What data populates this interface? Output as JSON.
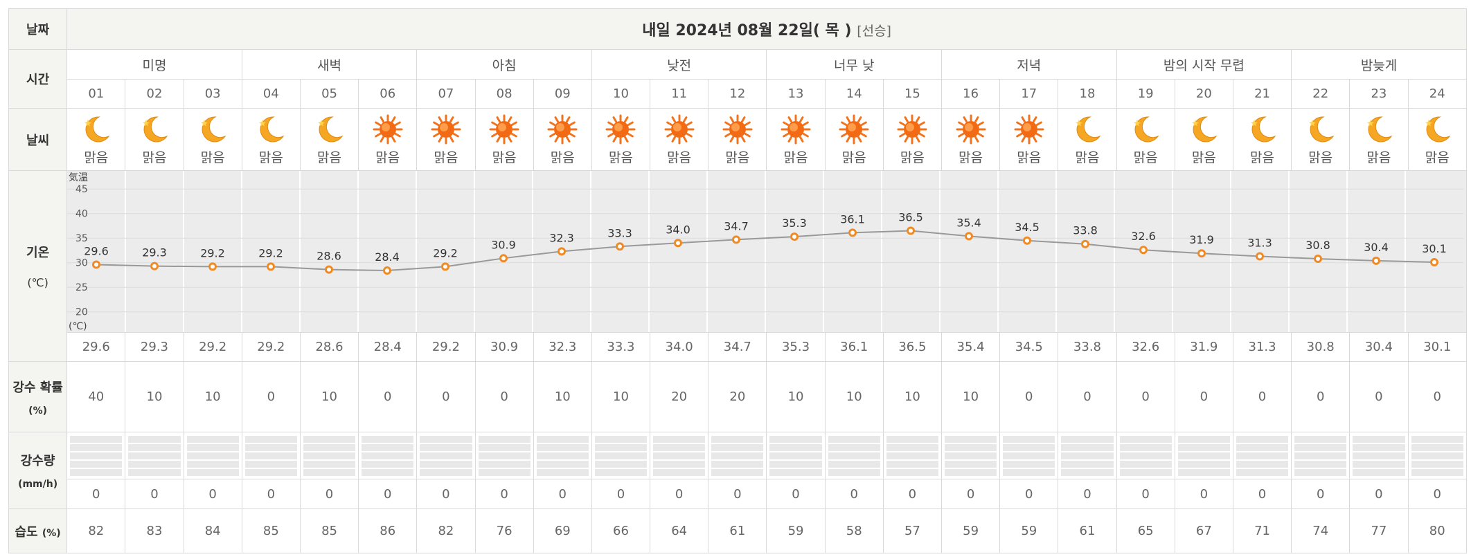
{
  "labels": {
    "date": "날짜",
    "time": "시간",
    "weather": "날씨",
    "temp": "기온",
    "temp_unit": "(℃)",
    "rain_prob": "강수 확률",
    "rain_prob_unit": "(%)",
    "rain_amt": "강수량",
    "rain_amt_unit": "(mm/h)",
    "humidity": "습도",
    "humidity_unit": "(%)"
  },
  "date_title": "내일 2024년 08월 22일( 목 )",
  "date_sub": "[선승]",
  "periods": [
    "미명",
    "새벽",
    "아침",
    "낮전",
    "너무 낮",
    "저녁",
    "밤의 시작 무렵",
    "밤늦게"
  ],
  "hours": [
    "01",
    "02",
    "03",
    "04",
    "05",
    "06",
    "07",
    "08",
    "09",
    "10",
    "11",
    "12",
    "13",
    "14",
    "15",
    "16",
    "17",
    "18",
    "19",
    "20",
    "21",
    "22",
    "23",
    "24"
  ],
  "icons": [
    "moon-icon",
    "moon-icon",
    "moon-icon",
    "moon-icon",
    "moon-icon",
    "sun-icon",
    "sun-icon",
    "sun-icon",
    "sun-icon",
    "sun-icon",
    "sun-icon",
    "sun-icon",
    "sun-icon",
    "sun-icon",
    "sun-icon",
    "sun-icon",
    "sun-icon",
    "moon-icon",
    "moon-icon",
    "moon-icon",
    "moon-icon",
    "moon-icon",
    "moon-icon",
    "moon-icon"
  ],
  "conditions": [
    "맑음",
    "맑음",
    "맑음",
    "맑음",
    "맑음",
    "맑음",
    "맑음",
    "맑음",
    "맑음",
    "맑음",
    "맑음",
    "맑음",
    "맑음",
    "맑음",
    "맑음",
    "맑음",
    "맑음",
    "맑음",
    "맑음",
    "맑음",
    "맑음",
    "맑음",
    "맑음",
    "맑음"
  ],
  "temperature": [
    "29.6",
    "29.3",
    "29.2",
    "29.2",
    "28.6",
    "28.4",
    "29.2",
    "30.9",
    "32.3",
    "33.3",
    "34.0",
    "34.7",
    "35.3",
    "36.1",
    "36.5",
    "35.4",
    "34.5",
    "33.8",
    "32.6",
    "31.9",
    "31.3",
    "30.8",
    "30.4",
    "30.1"
  ],
  "rain_probability": [
    "40",
    "10",
    "10",
    "0",
    "10",
    "0",
    "0",
    "0",
    "10",
    "10",
    "20",
    "20",
    "10",
    "10",
    "10",
    "10",
    "0",
    "0",
    "0",
    "0",
    "0",
    "0",
    "0",
    "0"
  ],
  "rain_amount": [
    "0",
    "0",
    "0",
    "0",
    "0",
    "0",
    "0",
    "0",
    "0",
    "0",
    "0",
    "0",
    "0",
    "0",
    "0",
    "0",
    "0",
    "0",
    "0",
    "0",
    "0",
    "0",
    "0",
    "0"
  ],
  "humidity": [
    "82",
    "83",
    "84",
    "85",
    "85",
    "86",
    "82",
    "76",
    "69",
    "66",
    "64",
    "61",
    "59",
    "58",
    "57",
    "59",
    "59",
    "61",
    "65",
    "67",
    "71",
    "74",
    "77",
    "80"
  ],
  "chart_data": {
    "type": "line",
    "x": [
      "01",
      "02",
      "03",
      "04",
      "05",
      "06",
      "07",
      "08",
      "09",
      "10",
      "11",
      "12",
      "13",
      "14",
      "15",
      "16",
      "17",
      "18",
      "19",
      "20",
      "21",
      "22",
      "23",
      "24"
    ],
    "series": [
      {
        "values": [
          29.6,
          29.3,
          29.2,
          29.2,
          28.6,
          28.4,
          29.2,
          30.9,
          32.3,
          33.3,
          34.0,
          34.7,
          35.3,
          36.1,
          36.5,
          35.4,
          34.5,
          33.8,
          32.6,
          31.9,
          31.3,
          30.8,
          30.4,
          30.1
        ]
      }
    ],
    "ylabel_top": "気温",
    "ylabel_bottom": "(℃)",
    "yticks": [
      "45",
      "40",
      "35",
      "30",
      "25",
      "20"
    ],
    "ylim": [
      17,
      47
    ],
    "grid": true
  },
  "colors": {
    "line": "#999999",
    "marker": "#f08a24",
    "chart_bg": "#ececec",
    "label_bg": "#f4f4f0",
    "border": "#d9d9d9"
  }
}
